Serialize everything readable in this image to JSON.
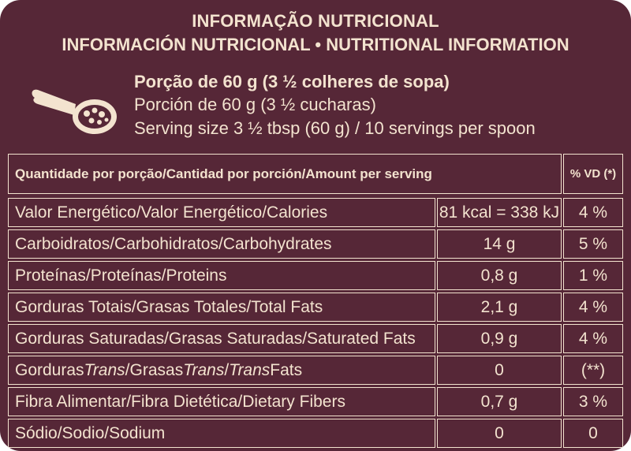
{
  "colors": {
    "background": "#562737",
    "text": "#f3e3cf"
  },
  "header": {
    "title_pt": "INFORMAÇÃO NUTRICIONAL",
    "title_es_en": "INFORMACIÓN NUTRICIONAL • NUTRITIONAL INFORMATION"
  },
  "serving": {
    "icon": "spoon-icon",
    "pt": "Porção de 60 g (3 ½ colheres de sopa)",
    "es": "Porción de 60 g (3 ½ cucharas)",
    "en": "Serving size  3 ½  tbsp  (60 g) / 10 servings per spoon"
  },
  "table": {
    "header_amount": "Quantidade por porção/Cantidad por porción/Amount per serving",
    "header_dv": "% VD (*)",
    "rows": [
      {
        "name": "Valor Energético/Valor Energético/Calories",
        "amount": "81 kcal = 338 kJ",
        "dv": "4 %"
      },
      {
        "name": "Carboidratos/Carbohidratos/Carbohydrates",
        "amount": "14 g",
        "dv": "5 %"
      },
      {
        "name": "Proteínas/Proteínas/Proteins",
        "amount": "0,8 g",
        "dv": "1 %"
      },
      {
        "name": "Gorduras Totais/Grasas Totales/Total Fats",
        "amount": "2,1 g",
        "dv": "4 %"
      },
      {
        "name": "Gorduras Saturadas/Grasas Saturadas/Saturated Fats",
        "amount": "0,9 g",
        "dv": "4 %"
      },
      {
        "name_parts": [
          "Gorduras ",
          "Trans",
          "/Grasas ",
          "Trans",
          "/",
          "Trans",
          " Fats"
        ],
        "amount": "0",
        "dv": "(**)"
      },
      {
        "name": "Fibra Alimentar/Fibra Dietética/Dietary Fibers",
        "amount": "0,7 g",
        "dv": "3 %"
      },
      {
        "name": "Sódio/Sodio/Sodium",
        "amount": "0",
        "dv": "0"
      }
    ]
  }
}
